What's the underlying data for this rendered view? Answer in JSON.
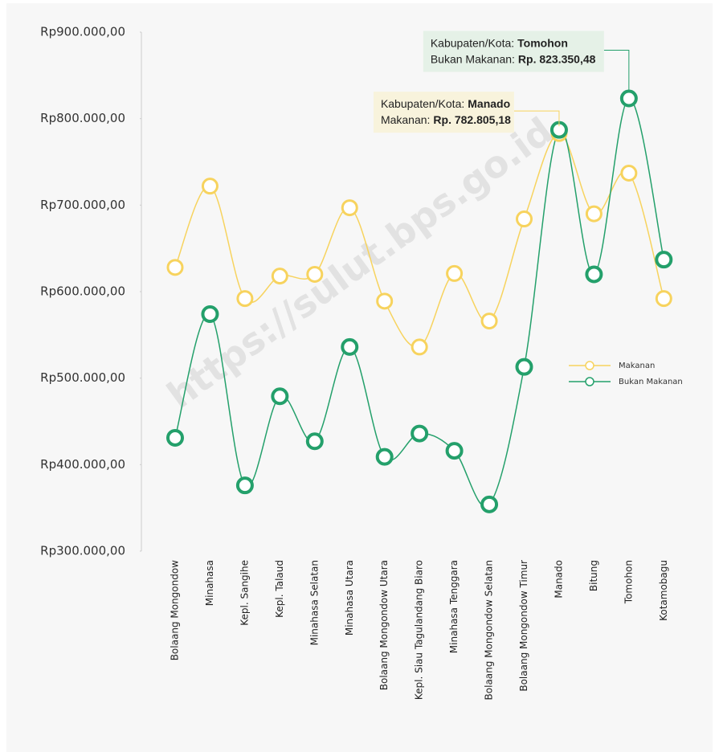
{
  "chart_data": {
    "type": "line",
    "categories": [
      "Bolaang Mongondow",
      "Minahasa",
      "Kepl. Sangihe",
      "Kepl. Talaud",
      "Minahasa Selatan",
      "Minahasa Utara",
      "Bolaang Mongondow Utara",
      "Kepl. Siau Tagulandang Biaro",
      "Minahasa Tenggara",
      "Bolaang Mongondow Selatan",
      "Bolaang Mongondow Timur",
      "Manado",
      "Bitung",
      "Tomohon",
      "Kotamobagu"
    ],
    "series": [
      {
        "name": "Makanan",
        "color": "#f7d35e",
        "values": [
          628000,
          722000,
          592000,
          618000,
          620000,
          697000,
          589000,
          536000,
          621000,
          566000,
          684000,
          782805.18,
          690000,
          737000,
          592000
        ],
        "value_labels": [
          null,
          null,
          null,
          null,
          null,
          null,
          null,
          null,
          null,
          null,
          null,
          "Rp. 782.805,18",
          null,
          null,
          null
        ]
      },
      {
        "name": "Bukan Makanan",
        "color": "#24a06b",
        "values": [
          431000,
          574000,
          376000,
          479000,
          427000,
          536000,
          409000,
          436000,
          416000,
          354000,
          513000,
          787000,
          620000,
          823350.48,
          637000
        ],
        "value_labels": [
          null,
          null,
          null,
          null,
          null,
          null,
          null,
          null,
          null,
          null,
          null,
          null,
          null,
          "Rp. 823.350,48",
          null
        ]
      }
    ],
    "tooltip_label": "Kabupaten/Kota:",
    "ylim": [
      300000,
      900000
    ],
    "yticks": [
      {
        "value": 300000,
        "label": "Rp300.000,00"
      },
      {
        "value": 400000,
        "label": "Rp400.000,00"
      },
      {
        "value": 500000,
        "label": "Rp500.000,00"
      },
      {
        "value": 600000,
        "label": "Rp600.000,00"
      },
      {
        "value": 700000,
        "label": "Rp700.000,00"
      },
      {
        "value": 800000,
        "label": "Rp800.000,00"
      },
      {
        "value": 900000,
        "label": "Rp900.000,00"
      }
    ],
    "legend": "right",
    "watermark": "https://sulut.bps.go.id"
  }
}
